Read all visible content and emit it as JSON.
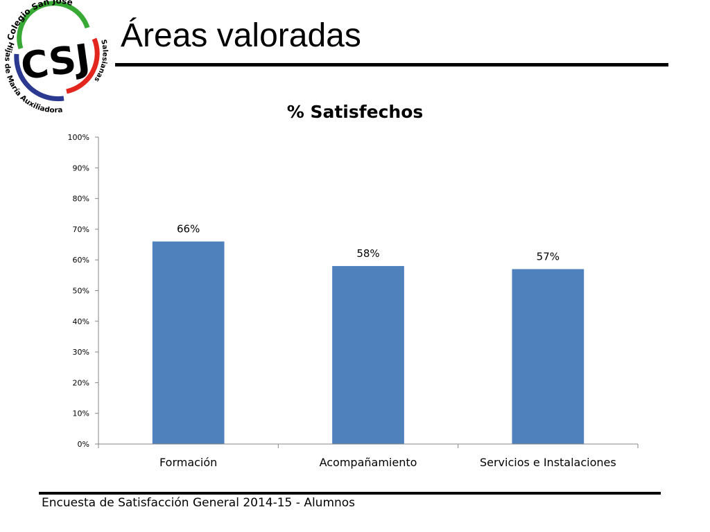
{
  "slide": {
    "title": "Áreas valoradas"
  },
  "logo": {
    "initials": "CSJ",
    "arc_top": "Colegio San José",
    "arc_right": "Salesianas",
    "arc_left": "Hijas de María Auxiliadora"
  },
  "chart_data": {
    "type": "bar",
    "title": "% Satisfechos",
    "categories": [
      "Formación",
      "Acompañamiento",
      "Servicios e Instalaciones"
    ],
    "values": [
      66,
      58,
      57
    ],
    "data_labels": [
      "66%",
      "58%",
      "57%"
    ],
    "ylim": [
      0,
      100
    ],
    "yticks": [
      "0%",
      "10%",
      "20%",
      "30%",
      "40%",
      "50%",
      "60%",
      "70%",
      "80%",
      "90%",
      "100%"
    ],
    "xlabel": "",
    "ylabel": "",
    "grid": false,
    "legend": "none",
    "bar_color": "#4F81BD"
  },
  "footer": {
    "text": "Encuesta  de Satisfacción General 2014-15 - Alumnos"
  }
}
